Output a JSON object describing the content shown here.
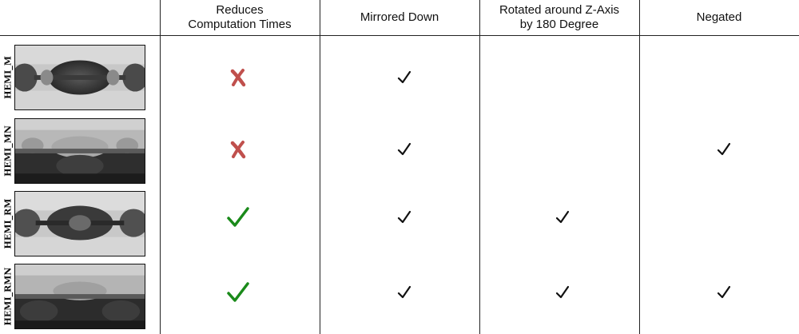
{
  "headers": {
    "reduces": "Reduces\nComputation Times",
    "mirrored": "Mirrored Down",
    "rotated": "Rotated around Z-Axis\nby 180 Degree",
    "negated": "Negated"
  },
  "rows": [
    {
      "label": "HEMI_M",
      "reduces": false,
      "mirrored": true,
      "rotated": false,
      "negated": false
    },
    {
      "label": "HEMI_MN",
      "reduces": false,
      "mirrored": true,
      "rotated": false,
      "negated": true
    },
    {
      "label": "HEMI_RM",
      "reduces": true,
      "mirrored": true,
      "rotated": true,
      "negated": false
    },
    {
      "label": "HEMI_RMN",
      "reduces": true,
      "mirrored": true,
      "rotated": true,
      "negated": true
    }
  ],
  "colors": {
    "cross": "#c0504d",
    "green_check": "#1a8a1a",
    "check": "#111111",
    "grid": "#222222"
  },
  "icons": {
    "cross": "cross-icon",
    "green_check": "green-check-icon",
    "check": "check-icon"
  }
}
